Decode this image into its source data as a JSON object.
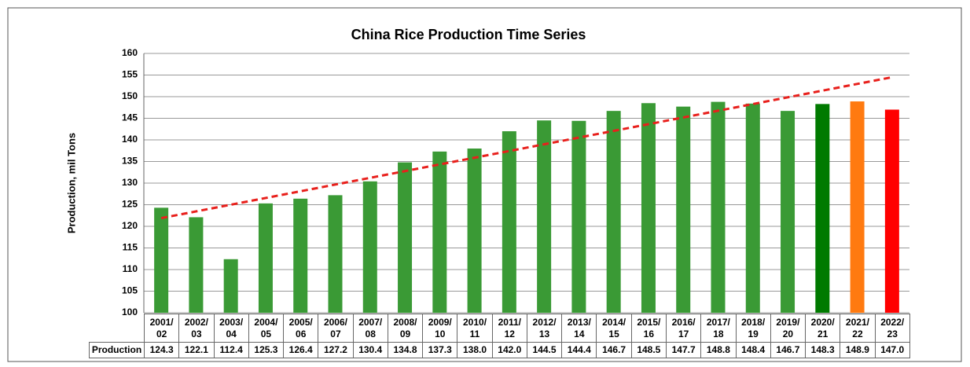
{
  "chart_data": {
    "type": "bar",
    "title": "China Rice Production Time Series",
    "y_label": "Production, mil Tons",
    "categories": [
      "2001/ 02",
      "2002/ 03",
      "2003/ 04",
      "2004/ 05",
      "2005/ 06",
      "2006/ 07",
      "2007/ 08",
      "2008/ 09",
      "2009/ 10",
      "2010/ 11",
      "2011/ 12",
      "2012/ 13",
      "2013/ 14",
      "2014/ 15",
      "2015/ 16",
      "2016/ 17",
      "2017/ 18",
      "2018/ 19",
      "2019/ 20",
      "2020/ 21",
      "2021/ 22",
      "2022/ 23"
    ],
    "series": [
      {
        "name": "Production",
        "values": [
          124.3,
          122.1,
          112.4,
          125.3,
          126.4,
          127.2,
          130.4,
          134.8,
          137.3,
          138.0,
          142.0,
          144.5,
          144.4,
          146.7,
          148.5,
          147.7,
          148.8,
          148.4,
          146.7,
          148.3,
          148.9,
          147.0
        ],
        "value_labels": [
          "124.3",
          "122.1",
          "112.4",
          "125.3",
          "126.4",
          "127.2",
          "130.4",
          "134.8",
          "137.3",
          "138.0",
          "142.0",
          "144.5",
          "144.4",
          "146.7",
          "148.5",
          "147.7",
          "148.8",
          "148.4",
          "146.7",
          "148.3",
          "148.9",
          "147.0"
        ],
        "colors": [
          "#3a9a35",
          "#3a9a35",
          "#3a9a35",
          "#3a9a35",
          "#3a9a35",
          "#3a9a35",
          "#3a9a35",
          "#3a9a35",
          "#3a9a35",
          "#3a9a35",
          "#3a9a35",
          "#3a9a35",
          "#3a9a35",
          "#3a9a35",
          "#3a9a35",
          "#3a9a35",
          "#3a9a35",
          "#3a9a35",
          "#3a9a35",
          "#007a00",
          "#ff7a10",
          "#ff0000"
        ]
      }
    ],
    "trendline": {
      "start": 121.9,
      "end": 154.5,
      "color": "#e8201c"
    },
    "ylim": [
      100,
      160
    ],
    "yticks": [
      100,
      105,
      110,
      115,
      120,
      125,
      130,
      135,
      140,
      145,
      150,
      155,
      160
    ],
    "grid": true
  }
}
